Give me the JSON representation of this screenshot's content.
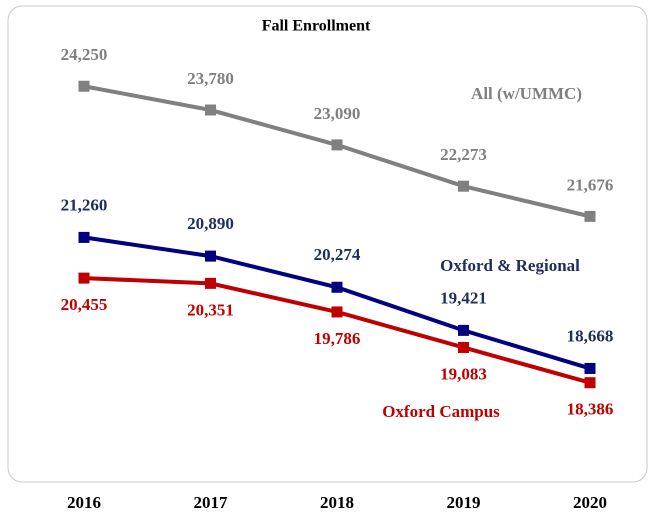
{
  "chart_data": {
    "type": "line",
    "title": "Fall Enrollment",
    "categories": [
      "2016",
      "2017",
      "2018",
      "2019",
      "2020"
    ],
    "ylim": [
      16600,
      25600
    ],
    "series": [
      {
        "name": "All (w/UMMC)",
        "color": "#808080",
        "label_color": "#7f7f7f",
        "values": [
          24250,
          23780,
          23090,
          22273,
          21676
        ],
        "value_labels": [
          "24,250",
          "23,780",
          "23,090",
          "22,273",
          "21,676"
        ]
      },
      {
        "name": "Oxford & Regional",
        "color": "#000080",
        "label_color": "#1f2d5c",
        "values": [
          21260,
          20890,
          20274,
          19421,
          18668
        ],
        "value_labels": [
          "21,260",
          "20,890",
          "20,274",
          "19,421",
          "18,668"
        ]
      },
      {
        "name": "Oxford Campus",
        "color": "#c00000",
        "label_color": "#c00000",
        "values": [
          20455,
          20351,
          19786,
          19083,
          18386
        ],
        "value_labels": [
          "20,455",
          "20,351",
          "19,786",
          "19,083",
          "18,386"
        ]
      }
    ]
  }
}
